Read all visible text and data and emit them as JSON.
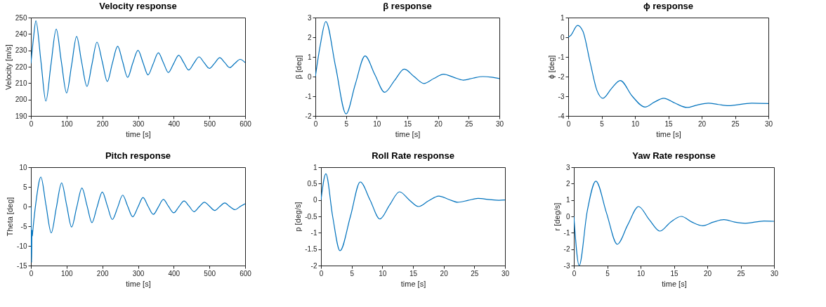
{
  "chart_data": [
    {
      "type": "line",
      "title": "Velocity response",
      "xlabel": "time [s]",
      "ylabel": "Velocity [m/s]",
      "xlim": [
        0,
        600
      ],
      "ylim": [
        190,
        250
      ],
      "xticks": [
        0,
        100,
        200,
        300,
        400,
        500,
        600
      ],
      "yticks": [
        190,
        200,
        210,
        220,
        230,
        240,
        250
      ],
      "grid": false,
      "x": [
        0,
        7,
        14,
        28,
        42,
        56,
        71,
        85,
        100,
        114,
        128,
        142,
        157,
        171,
        185,
        200,
        214,
        228,
        243,
        257,
        271,
        285,
        300,
        314,
        328,
        342,
        357,
        371,
        385,
        400,
        414,
        428,
        442,
        456,
        471,
        485,
        500,
        514,
        529,
        543,
        557,
        571,
        586,
        600
      ],
      "series": [
        {
          "color": "#0072bd",
          "values": [
            222,
            237,
            248,
            223.5,
            199,
            221,
            243,
            223.5,
            204,
            221,
            238.5,
            223,
            208,
            221.5,
            235,
            223,
            211,
            222,
            232.5,
            223,
            213.5,
            222,
            230,
            222.5,
            215,
            221.5,
            228.5,
            222.5,
            216.5,
            222,
            227,
            222.5,
            218,
            222,
            226,
            222.5,
            219,
            222,
            225.5,
            222.5,
            219.5,
            222,
            224.5,
            222.5
          ]
        }
      ]
    },
    {
      "type": "line",
      "title": "β response",
      "xlabel": "time [s]",
      "ylabel": "β [deg]",
      "xlim": [
        0,
        30
      ],
      "ylim": [
        -2,
        3
      ],
      "xticks": [
        0,
        5,
        10,
        15,
        20,
        25,
        30
      ],
      "yticks": [
        -2,
        -1,
        0,
        1,
        2,
        3
      ],
      "grid": false,
      "x": [
        0,
        0.8,
        1.7,
        3.3,
        5,
        6.5,
        8.1,
        9.7,
        11.3,
        12.9,
        14.5,
        16.1,
        17.7,
        19.3,
        20.9,
        22.5,
        24.1,
        25.7,
        27.3,
        28.7,
        30
      ],
      "series": [
        {
          "color": "#0072bd",
          "values": [
            0,
            1.6,
            2.8,
            0.5,
            -1.9,
            -0.4,
            1.05,
            0.1,
            -0.8,
            -0.2,
            0.38,
            0,
            -0.35,
            -0.1,
            0.12,
            -0.03,
            -0.18,
            -0.08,
            0,
            -0.03,
            -0.1
          ]
        }
      ]
    },
    {
      "type": "line",
      "title": "ϕ response",
      "xlabel": "time [s]",
      "ylabel": "ϕ [deg]",
      "xlim": [
        0,
        30
      ],
      "ylim": [
        -4,
        1
      ],
      "xticks": [
        0,
        5,
        10,
        15,
        20,
        25,
        30
      ],
      "yticks": [
        -4,
        -3,
        -2,
        -1,
        0,
        1
      ],
      "grid": false,
      "x": [
        0,
        0.4,
        1.4,
        2.2,
        3.3,
        4.3,
        5.2,
        6.5,
        7.8,
        9.6,
        11.5,
        12.9,
        14.3,
        16,
        17.8,
        19.3,
        21,
        22.5,
        24,
        27.5,
        30
      ],
      "series": [
        {
          "color": "#0072bd",
          "values": [
            0,
            0.1,
            0.6,
            0.3,
            -1.3,
            -2.7,
            -3.1,
            -2.6,
            -2.2,
            -3,
            -3.55,
            -3.3,
            -3.1,
            -3.35,
            -3.57,
            -3.45,
            -3.35,
            -3.42,
            -3.48,
            -3.35,
            -3.37
          ]
        }
      ]
    },
    {
      "type": "line",
      "title": "Pitch response",
      "xlabel": "time [s]",
      "ylabel": "Theta [deg]",
      "xlim": [
        0,
        600
      ],
      "ylim": [
        -15,
        10
      ],
      "xticks": [
        0,
        100,
        200,
        300,
        400,
        500,
        600
      ],
      "yticks": [
        -15,
        -10,
        -5,
        0,
        5,
        10
      ],
      "grid": false,
      "x": [
        0,
        1,
        2,
        3,
        4,
        5,
        14,
        28,
        42,
        57,
        71,
        86,
        100,
        114,
        128,
        143,
        157,
        171,
        185,
        200,
        214,
        228,
        243,
        257,
        271,
        285,
        300,
        314,
        328,
        343,
        357,
        371,
        385,
        400,
        414,
        429,
        443,
        457,
        471,
        486,
        500,
        515,
        529,
        543,
        557,
        572,
        586,
        600
      ],
      "series": [
        {
          "color": "#0072bd",
          "values": [
            0,
            -9,
            -14.2,
            -6,
            -7.5,
            -6.5,
            1,
            7.5,
            0.5,
            -6.7,
            -0.4,
            6,
            0.4,
            -5.2,
            -0.3,
            4.7,
            0.3,
            -4.1,
            -0.2,
            3.7,
            0.2,
            -3.3,
            -0.2,
            2.9,
            0.1,
            -2.6,
            -0.1,
            2.3,
            0.1,
            -2,
            -0.1,
            1.8,
            0.1,
            -1.6,
            -0.1,
            1.4,
            0.1,
            -1.3,
            -0.1,
            1.1,
            0.1,
            -1,
            0,
            0.9,
            0,
            -0.8,
            0,
            0.7
          ]
        }
      ]
    },
    {
      "type": "line",
      "title": "Roll Rate response",
      "xlabel": "time [s]",
      "ylabel": "p [deg/s]",
      "xlim": [
        0,
        30
      ],
      "ylim": [
        -2,
        1
      ],
      "xticks": [
        0,
        5,
        10,
        15,
        20,
        25,
        30
      ],
      "yticks": [
        -2,
        -1.5,
        -1,
        -0.5,
        0,
        0.5,
        1
      ],
      "grid": false,
      "x": [
        0,
        0.8,
        1.9,
        3.1,
        4.8,
        6.4,
        8,
        9.6,
        11.2,
        12.8,
        14.4,
        15.9,
        17.5,
        19.2,
        20.8,
        22.3,
        24,
        25.6,
        27.5,
        29,
        30
      ],
      "series": [
        {
          "color": "#0072bd",
          "values": [
            0,
            0.8,
            -0.5,
            -1.55,
            -0.5,
            0.55,
            0,
            -0.58,
            -0.15,
            0.25,
            0,
            -0.2,
            -0.03,
            0.12,
            0.02,
            -0.07,
            -0.01,
            0.05,
            0.01,
            -0.01,
            0
          ]
        }
      ]
    },
    {
      "type": "line",
      "title": "Yaw Rate response",
      "xlabel": "time [s]",
      "ylabel": "r [deg/s]",
      "xlim": [
        0,
        30
      ],
      "ylim": [
        -3,
        3
      ],
      "xticks": [
        0,
        5,
        10,
        15,
        20,
        25,
        30
      ],
      "yticks": [
        -3,
        -2,
        -1,
        0,
        1,
        2,
        3
      ],
      "grid": false,
      "x": [
        0,
        0.8,
        2,
        3.3,
        4.9,
        6.5,
        8.1,
        9.7,
        11.3,
        12.9,
        14.5,
        16.1,
        17.7,
        19.3,
        20.9,
        22.5,
        24.1,
        25.7,
        28.5,
        30
      ],
      "series": [
        {
          "color": "#0072bd",
          "values": [
            0,
            -3,
            0.3,
            2.15,
            0.2,
            -1.7,
            -0.5,
            0.6,
            -0.2,
            -0.9,
            -0.35,
            0,
            -0.35,
            -0.57,
            -0.35,
            -0.2,
            -0.35,
            -0.42,
            -0.28,
            -0.3
          ]
        }
      ]
    }
  ]
}
